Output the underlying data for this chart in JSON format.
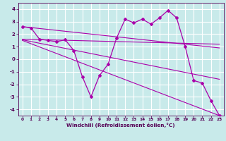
{
  "title": "",
  "xlabel": "Windchill (Refroidissement éolien,°C)",
  "ylabel": "",
  "background_color": "#c8eaea",
  "grid_color": "#ffffff",
  "line_color": "#aa00aa",
  "xlim": [
    -0.5,
    23.5
  ],
  "ylim": [
    -4.5,
    4.5
  ],
  "xticks": [
    0,
    1,
    2,
    3,
    4,
    5,
    6,
    7,
    8,
    9,
    10,
    11,
    12,
    13,
    14,
    15,
    16,
    17,
    18,
    19,
    20,
    21,
    22,
    23
  ],
  "yticks": [
    -4,
    -3,
    -2,
    -1,
    0,
    1,
    2,
    3,
    4
  ],
  "main_x": [
    0,
    1,
    2,
    3,
    4,
    5,
    6,
    7,
    8,
    9,
    10,
    11,
    12,
    13,
    14,
    15,
    16,
    17,
    18,
    19,
    20,
    21,
    22,
    23
  ],
  "main_y": [
    2.6,
    2.5,
    1.6,
    1.5,
    1.4,
    1.55,
    0.7,
    -1.4,
    -3.0,
    -1.3,
    -0.4,
    1.7,
    3.2,
    2.9,
    3.2,
    2.8,
    3.3,
    3.9,
    3.3,
    1.0,
    -1.7,
    -1.9,
    -3.3,
    -4.5
  ],
  "trend1_x": [
    0,
    23
  ],
  "trend1_y": [
    2.6,
    0.9
  ],
  "trend2_x": [
    0,
    23
  ],
  "trend2_y": [
    1.6,
    1.2
  ],
  "trend3_x": [
    0,
    23
  ],
  "trend3_y": [
    1.5,
    -4.5
  ],
  "trend4_x": [
    0,
    23
  ],
  "trend4_y": [
    1.55,
    -1.6
  ]
}
